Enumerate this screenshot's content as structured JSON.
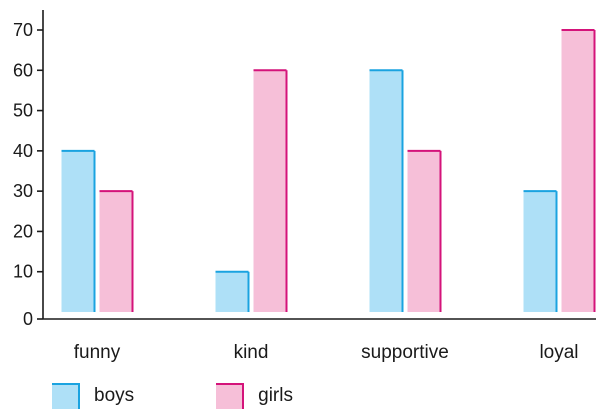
{
  "chart_data": {
    "type": "bar",
    "categories": [
      "funny",
      "kind",
      "supportive",
      "loyal"
    ],
    "series": [
      {
        "name": "boys",
        "values": [
          40,
          10,
          60,
          30
        ],
        "fill": "#aee0f7",
        "edge": "#1aa3e0"
      },
      {
        "name": "girls",
        "values": [
          30,
          60,
          40,
          70
        ],
        "fill": "#f6bfd8",
        "edge": "#d4137a"
      }
    ],
    "yticks": [
      0,
      10,
      20,
      30,
      40,
      50,
      60,
      70
    ],
    "ylim": [
      0,
      70
    ],
    "grid": false,
    "legend_position": "bottom-left",
    "title": "",
    "xlabel": "",
    "ylabel": ""
  }
}
